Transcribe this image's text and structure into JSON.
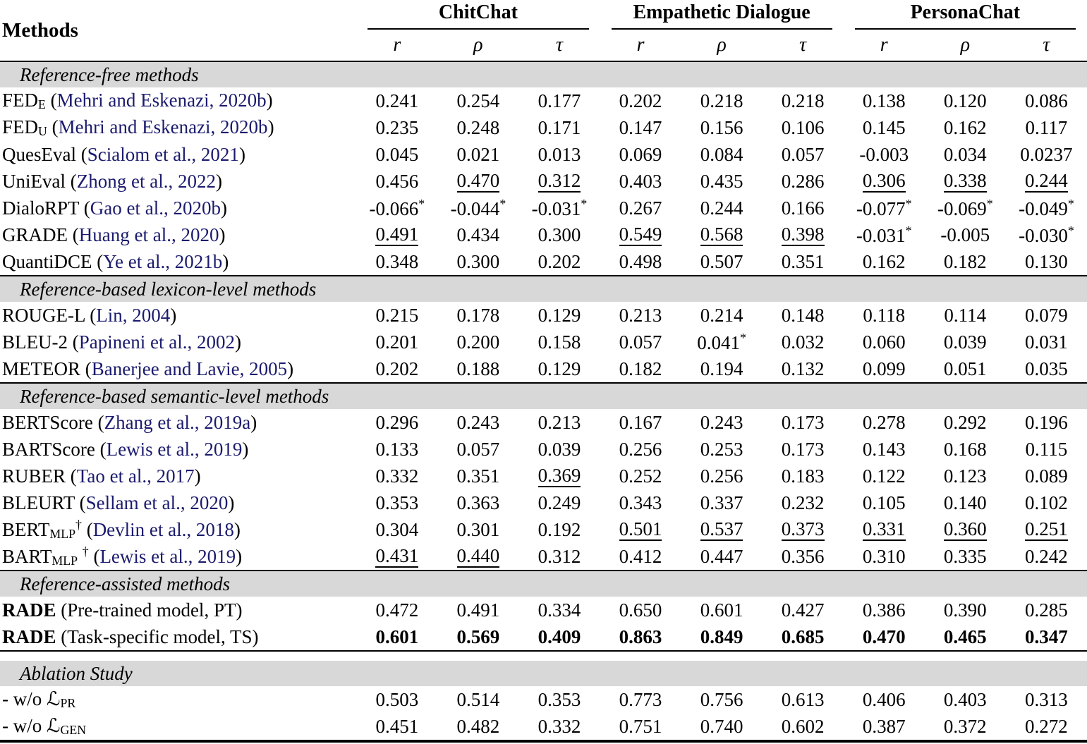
{
  "colors": {
    "citation": "#1b1b6e",
    "section_bg": "#d8d8d8",
    "rule": "#000000"
  },
  "header": {
    "methods_label": "Methods",
    "groups": [
      "ChitChat",
      "Empathetic Dialogue",
      "PersonaChat"
    ],
    "metrics": [
      "r",
      "ρ",
      "τ"
    ]
  },
  "sections": [
    {
      "title": "Reference-free methods",
      "rows": [
        {
          "label_parts": [
            {
              "t": "FED",
              "st": "p"
            },
            {
              "t": "E",
              "st": "sub"
            },
            {
              "t": " (",
              "st": "p"
            },
            {
              "t": "Mehri and Eskenazi, 2020b",
              "st": "cite"
            },
            {
              "t": ")",
              "st": "p"
            }
          ],
          "values": [
            {
              "t": "0.241"
            },
            {
              "t": "0.254"
            },
            {
              "t": "0.177"
            },
            {
              "t": "0.202"
            },
            {
              "t": "0.218"
            },
            {
              "t": "0.218"
            },
            {
              "t": "0.138"
            },
            {
              "t": "0.120"
            },
            {
              "t": "0.086"
            }
          ]
        },
        {
          "label_parts": [
            {
              "t": "FED",
              "st": "p"
            },
            {
              "t": "U",
              "st": "sub"
            },
            {
              "t": " (",
              "st": "p"
            },
            {
              "t": "Mehri and Eskenazi, 2020b",
              "st": "cite"
            },
            {
              "t": ")",
              "st": "p"
            }
          ],
          "values": [
            {
              "t": "0.235"
            },
            {
              "t": "0.248"
            },
            {
              "t": "0.171"
            },
            {
              "t": "0.147"
            },
            {
              "t": "0.156"
            },
            {
              "t": "0.106"
            },
            {
              "t": "0.145"
            },
            {
              "t": "0.162"
            },
            {
              "t": "0.117"
            }
          ]
        },
        {
          "label_parts": [
            {
              "t": "QuesEval (",
              "st": "p"
            },
            {
              "t": "Scialom et al., 2021",
              "st": "cite"
            },
            {
              "t": ")",
              "st": "p"
            }
          ],
          "values": [
            {
              "t": "0.045"
            },
            {
              "t": "0.021"
            },
            {
              "t": "0.013"
            },
            {
              "t": "0.069"
            },
            {
              "t": "0.084"
            },
            {
              "t": "0.057"
            },
            {
              "t": "-0.003"
            },
            {
              "t": "0.034"
            },
            {
              "t": "0.0237"
            }
          ]
        },
        {
          "label_parts": [
            {
              "t": "UniEval  (",
              "st": "p"
            },
            {
              "t": "Zhong et al., 2022",
              "st": "cite"
            },
            {
              "t": ")",
              "st": "p"
            }
          ],
          "values": [
            {
              "t": "0.456"
            },
            {
              "t": "0.470",
              "u": 1
            },
            {
              "t": "0.312",
              "u": 1
            },
            {
              "t": "0.403"
            },
            {
              "t": "0.435"
            },
            {
              "t": "0.286"
            },
            {
              "t": "0.306",
              "u": 1
            },
            {
              "t": "0.338",
              "u": 1
            },
            {
              "t": "0.244",
              "u": 1
            }
          ]
        },
        {
          "label_parts": [
            {
              "t": "DialoRPT (",
              "st": "p"
            },
            {
              "t": "Gao et al., 2020b",
              "st": "cite"
            },
            {
              "t": ")",
              "st": "p"
            }
          ],
          "values": [
            {
              "t": "-0.066",
              "s": 1
            },
            {
              "t": "-0.044",
              "s": 1
            },
            {
              "t": "-0.031",
              "s": 1
            },
            {
              "t": "0.267"
            },
            {
              "t": "0.244"
            },
            {
              "t": "0.166"
            },
            {
              "t": "-0.077",
              "s": 1
            },
            {
              "t": "-0.069",
              "s": 1
            },
            {
              "t": "-0.049",
              "s": 1
            }
          ]
        },
        {
          "label_parts": [
            {
              "t": "GRADE (",
              "st": "p"
            },
            {
              "t": "Huang et al., 2020",
              "st": "cite"
            },
            {
              "t": ")",
              "st": "p"
            }
          ],
          "values": [
            {
              "t": "0.491",
              "u": 1
            },
            {
              "t": "0.434"
            },
            {
              "t": "0.300"
            },
            {
              "t": "0.549",
              "u": 1
            },
            {
              "t": "0.568",
              "u": 1
            },
            {
              "t": "0.398",
              "u": 1
            },
            {
              "t": "-0.031",
              "s": 1
            },
            {
              "t": "-0.005"
            },
            {
              "t": "-0.030",
              "s": 1
            }
          ]
        },
        {
          "label_parts": [
            {
              "t": "QuantiDCE (",
              "st": "p"
            },
            {
              "t": "Ye et al., 2021b",
              "st": "cite"
            },
            {
              "t": ")",
              "st": "p"
            }
          ],
          "values": [
            {
              "t": "0.348"
            },
            {
              "t": "0.300"
            },
            {
              "t": "0.202"
            },
            {
              "t": "0.498"
            },
            {
              "t": "0.507"
            },
            {
              "t": "0.351"
            },
            {
              "t": "0.162"
            },
            {
              "t": "0.182"
            },
            {
              "t": "0.130"
            }
          ]
        }
      ]
    },
    {
      "title": "Reference-based lexicon-level methods",
      "rows": [
        {
          "label_parts": [
            {
              "t": "ROUGE-L (",
              "st": "p"
            },
            {
              "t": "Lin, 2004",
              "st": "cite"
            },
            {
              "t": ")",
              "st": "p"
            }
          ],
          "values": [
            {
              "t": "0.215"
            },
            {
              "t": "0.178"
            },
            {
              "t": "0.129"
            },
            {
              "t": "0.213"
            },
            {
              "t": "0.214"
            },
            {
              "t": "0.148"
            },
            {
              "t": "0.118"
            },
            {
              "t": "0.114"
            },
            {
              "t": "0.079"
            }
          ]
        },
        {
          "label_parts": [
            {
              "t": "BLEU-2  (",
              "st": "p"
            },
            {
              "t": "Papineni et al., 2002",
              "st": "cite"
            },
            {
              "t": ")",
              "st": "p"
            }
          ],
          "values": [
            {
              "t": "0.201"
            },
            {
              "t": "0.200"
            },
            {
              "t": "0.158"
            },
            {
              "t": "0.057"
            },
            {
              "t": "0.041",
              "s": 1
            },
            {
              "t": "0.032"
            },
            {
              "t": "0.060"
            },
            {
              "t": "0.039"
            },
            {
              "t": "0.031"
            }
          ]
        },
        {
          "label_parts": [
            {
              "t": "METEOR  (",
              "st": "p"
            },
            {
              "t": "Banerjee and Lavie, 2005",
              "st": "cite"
            },
            {
              "t": ")",
              "st": "p"
            }
          ],
          "values": [
            {
              "t": "0.202"
            },
            {
              "t": "0.188"
            },
            {
              "t": "0.129"
            },
            {
              "t": "0.182"
            },
            {
              "t": "0.194"
            },
            {
              "t": "0.132"
            },
            {
              "t": "0.099"
            },
            {
              "t": "0.051"
            },
            {
              "t": "0.035"
            }
          ]
        }
      ]
    },
    {
      "title": "Reference-based semantic-level methods",
      "rows": [
        {
          "label_parts": [
            {
              "t": "BERTScore  (",
              "st": "p"
            },
            {
              "t": "Zhang et al., 2019a",
              "st": "cite"
            },
            {
              "t": ")",
              "st": "p"
            }
          ],
          "values": [
            {
              "t": "0.296"
            },
            {
              "t": "0.243"
            },
            {
              "t": "0.213"
            },
            {
              "t": "0.167"
            },
            {
              "t": "0.243"
            },
            {
              "t": "0.173"
            },
            {
              "t": "0.278"
            },
            {
              "t": "0.292"
            },
            {
              "t": "0.196"
            }
          ]
        },
        {
          "label_parts": [
            {
              "t": "BARTScore  (",
              "st": "p"
            },
            {
              "t": "Lewis et al., 2019",
              "st": "cite"
            },
            {
              "t": ")",
              "st": "p"
            }
          ],
          "values": [
            {
              "t": "0.133"
            },
            {
              "t": "0.057"
            },
            {
              "t": "0.039"
            },
            {
              "t": "0.256"
            },
            {
              "t": "0.253"
            },
            {
              "t": "0.173"
            },
            {
              "t": "0.143"
            },
            {
              "t": "0.168"
            },
            {
              "t": "0.115"
            }
          ]
        },
        {
          "label_parts": [
            {
              "t": "RUBER (",
              "st": "p"
            },
            {
              "t": "Tao et al., 2017",
              "st": "cite"
            },
            {
              "t": ")",
              "st": "p"
            }
          ],
          "values": [
            {
              "t": "0.332"
            },
            {
              "t": "0.351"
            },
            {
              "t": "0.369",
              "u": 1
            },
            {
              "t": "0.252"
            },
            {
              "t": "0.256"
            },
            {
              "t": "0.183"
            },
            {
              "t": "0.122"
            },
            {
              "t": "0.123"
            },
            {
              "t": "0.089"
            }
          ]
        },
        {
          "label_parts": [
            {
              "t": "BLEURT (",
              "st": "p"
            },
            {
              "t": "Sellam et al., 2020",
              "st": "cite"
            },
            {
              "t": ")",
              "st": "p"
            }
          ],
          "values": [
            {
              "t": "0.353"
            },
            {
              "t": "0.363"
            },
            {
              "t": "0.249"
            },
            {
              "t": "0.343"
            },
            {
              "t": "0.337"
            },
            {
              "t": "0.232"
            },
            {
              "t": "0.105"
            },
            {
              "t": "0.140"
            },
            {
              "t": "0.102"
            }
          ]
        },
        {
          "label_parts": [
            {
              "t": "BERT",
              "st": "p"
            },
            {
              "t": "MLP",
              "st": "sub"
            },
            {
              "t": "†",
              "st": "sup"
            },
            {
              "t": " (",
              "st": "p"
            },
            {
              "t": "Devlin et al., 2018",
              "st": "cite"
            },
            {
              "t": ")",
              "st": "p"
            }
          ],
          "values": [
            {
              "t": "0.304"
            },
            {
              "t": "0.301"
            },
            {
              "t": "0.192"
            },
            {
              "t": "0.501",
              "u": 1
            },
            {
              "t": "0.537",
              "u": 1
            },
            {
              "t": "0.373",
              "u": 1
            },
            {
              "t": "0.331",
              "u": 1
            },
            {
              "t": "0.360",
              "u": 1
            },
            {
              "t": "0.251",
              "u": 1
            }
          ]
        },
        {
          "label_parts": [
            {
              "t": "BART",
              "st": "p"
            },
            {
              "t": "MLP",
              "st": "sub"
            },
            {
              "t": " ",
              "st": "p"
            },
            {
              "t": "†",
              "st": "sup"
            },
            {
              "t": " (",
              "st": "p"
            },
            {
              "t": "Lewis et al., 2019",
              "st": "cite"
            },
            {
              "t": ")",
              "st": "p"
            }
          ],
          "values": [
            {
              "t": "0.431",
              "u": 1
            },
            {
              "t": "0.440",
              "u": 1
            },
            {
              "t": "0.312"
            },
            {
              "t": "0.412"
            },
            {
              "t": "0.447"
            },
            {
              "t": "0.356"
            },
            {
              "t": "0.310"
            },
            {
              "t": "0.335"
            },
            {
              "t": "0.242"
            }
          ]
        }
      ]
    },
    {
      "title": "Reference-assisted methods",
      "rows": [
        {
          "label_parts": [
            {
              "t": "RADE",
              "st": "b"
            },
            {
              "t": " (Pre-trained model, PT)",
              "st": "p"
            }
          ],
          "values": [
            {
              "t": "0.472"
            },
            {
              "t": "0.491"
            },
            {
              "t": "0.334"
            },
            {
              "t": "0.650"
            },
            {
              "t": "0.601"
            },
            {
              "t": "0.427"
            },
            {
              "t": "0.386"
            },
            {
              "t": "0.390"
            },
            {
              "t": "0.285"
            }
          ]
        },
        {
          "label_parts": [
            {
              "t": "RADE",
              "st": "b"
            },
            {
              "t": " (Task-specific model, TS)",
              "st": "p"
            }
          ],
          "values": [
            {
              "t": "0.601",
              "b": 1
            },
            {
              "t": "0.569",
              "b": 1
            },
            {
              "t": "0.409",
              "b": 1
            },
            {
              "t": "0.863",
              "b": 1
            },
            {
              "t": "0.849",
              "b": 1
            },
            {
              "t": "0.685",
              "b": 1
            },
            {
              "t": "0.470",
              "b": 1
            },
            {
              "t": "0.465",
              "b": 1
            },
            {
              "t": "0.347",
              "b": 1
            }
          ]
        }
      ]
    },
    {
      "title": "Ablation Study",
      "gap_before": true,
      "rows": [
        {
          "label_parts": [
            {
              "t": "- w/o ",
              "st": "p"
            },
            {
              "t": "ℒ",
              "st": "cal"
            },
            {
              "t": "PR",
              "st": "sub"
            }
          ],
          "values": [
            {
              "t": "0.503"
            },
            {
              "t": "0.514"
            },
            {
              "t": "0.353"
            },
            {
              "t": "0.773"
            },
            {
              "t": "0.756"
            },
            {
              "t": "0.613"
            },
            {
              "t": "0.406"
            },
            {
              "t": "0.403"
            },
            {
              "t": "0.313"
            }
          ]
        },
        {
          "label_parts": [
            {
              "t": "- w/o ",
              "st": "p"
            },
            {
              "t": "ℒ",
              "st": "cal"
            },
            {
              "t": "GEN",
              "st": "sub"
            }
          ],
          "values": [
            {
              "t": "0.451"
            },
            {
              "t": "0.482"
            },
            {
              "t": "0.332"
            },
            {
              "t": "0.751"
            },
            {
              "t": "0.740"
            },
            {
              "t": "0.602"
            },
            {
              "t": "0.387"
            },
            {
              "t": "0.372"
            },
            {
              "t": "0.272"
            }
          ]
        }
      ]
    }
  ]
}
